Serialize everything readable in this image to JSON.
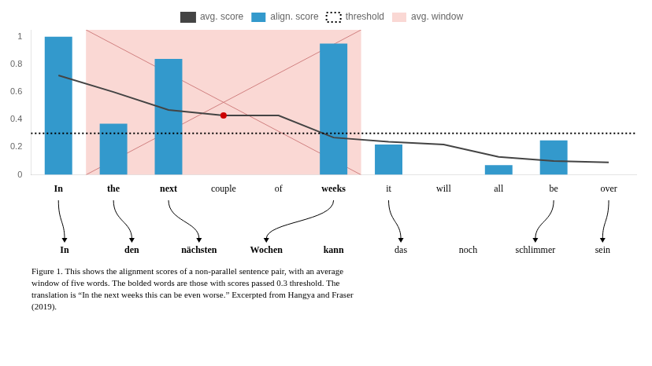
{
  "chart_data": {
    "type": "bar",
    "categories": [
      "In",
      "the",
      "next",
      "couple",
      "of",
      "weeks",
      "it",
      "will",
      "all",
      "be",
      "over"
    ],
    "series": [
      {
        "name": "align. score",
        "type": "bar",
        "color": "#3399cc",
        "values": [
          1.0,
          0.37,
          0.84,
          0.0,
          0.0,
          0.95,
          0.22,
          0.0,
          0.07,
          0.25,
          0.0
        ]
      },
      {
        "name": "avg. score",
        "type": "line",
        "color": "#444444",
        "values": [
          0.72,
          0.6,
          0.47,
          0.43,
          0.43,
          0.27,
          0.24,
          0.22,
          0.13,
          0.1,
          0.09
        ]
      }
    ],
    "threshold": {
      "name": "threshold",
      "value": 0.3,
      "color": "#000000",
      "line_style": "dotted"
    },
    "window": {
      "name": "avg. window",
      "start": 1,
      "end": 5,
      "color": "#f5b8b0",
      "line_color": "#d08080"
    },
    "window_center": {
      "x": 3,
      "y": 0.43,
      "color": "#cc0000"
    },
    "bold_categories": [
      0,
      1,
      2,
      5
    ],
    "translation": {
      "words": [
        "In",
        "den",
        "nächsten",
        "Wochen",
        "kann",
        "das",
        "noch",
        "schlimmer",
        "sein"
      ],
      "bold": [
        0,
        1,
        2,
        3,
        4
      ]
    },
    "alignments": [
      [
        0,
        0
      ],
      [
        1,
        1
      ],
      [
        2,
        2
      ],
      [
        5,
        3
      ],
      [
        6,
        5
      ],
      [
        9,
        7
      ],
      [
        10,
        8
      ]
    ],
    "caption": "Figure 1. This shows the alignment scores of a non-parallel sentence pair, with an average\nwindow of five words. The bolded words are those with scores passed 0.3 threshold. The\ntranslation is “In the next weeks this can be even worse.” Excerpted from Hangya and Fraser\n(2019).",
    "ylim": [
      0.0,
      1.05
    ],
    "yticks": [
      0,
      0.2,
      0.4,
      0.6,
      0.8,
      1.0
    ],
    "grid": false,
    "legend": "top"
  }
}
